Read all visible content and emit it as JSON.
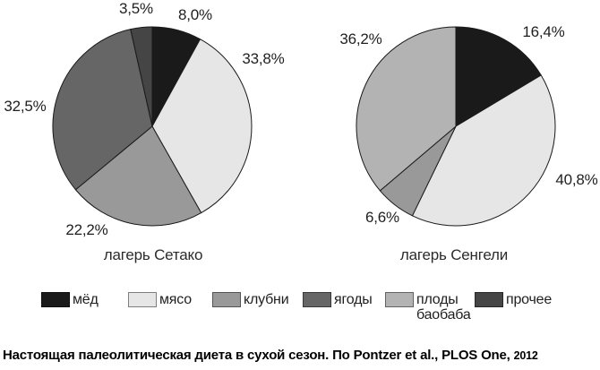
{
  "page": {
    "caption_text": "Настоящая палеолитическая диета в сухой сезон. По Pontzer et al., PLOS One,",
    "caption_year": "2012"
  },
  "chart_data": {
    "type": "pie",
    "direction": "clockwise",
    "start_angle_deg": 0,
    "decimal_separator": ",",
    "stroke_color": "#1a1a1a",
    "legend_position": "bottom",
    "legend": [
      {
        "label": "мёд",
        "color": "#1a1a1a"
      },
      {
        "label": "мясо",
        "color": "#e6e6e6"
      },
      {
        "label": "клубни",
        "color": "#999999"
      },
      {
        "label": "ягоды",
        "color": "#666666"
      },
      {
        "label": "плоды баобаба",
        "color": "#b3b3b3"
      },
      {
        "label": "прочее",
        "color": "#454545"
      }
    ],
    "charts": [
      {
        "title": "лагерь Сетако",
        "slices": [
          {
            "category": "мёд",
            "value": 8.0,
            "label": "8,0%"
          },
          {
            "category": "мясо",
            "value": 33.8,
            "label": "33,8%"
          },
          {
            "category": "клубни",
            "value": 22.2,
            "label": "22,2%"
          },
          {
            "category": "ягоды",
            "value": 32.5,
            "label": "32,5%"
          },
          {
            "category": "прочее",
            "value": 3.5,
            "label": "3,5%"
          }
        ]
      },
      {
        "title": "лагерь Сенгели",
        "slices": [
          {
            "category": "мёд",
            "value": 16.4,
            "label": "16,4%"
          },
          {
            "category": "мясо",
            "value": 40.8,
            "label": "40,8%"
          },
          {
            "category": "клубни",
            "value": 6.6,
            "label": "6,6%"
          },
          {
            "category": "плоды баобаба",
            "value": 36.2,
            "label": "36,2%"
          }
        ]
      }
    ]
  }
}
